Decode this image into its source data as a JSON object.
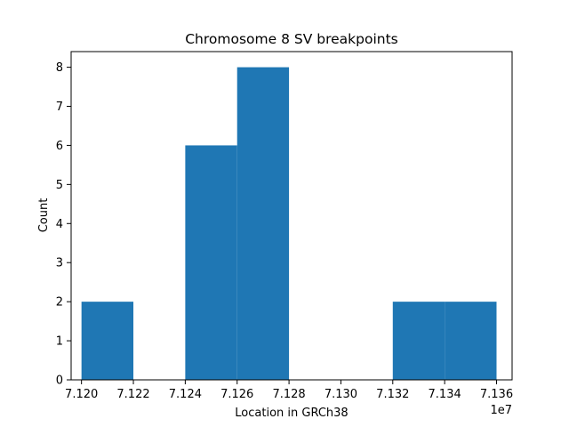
{
  "chart_data": {
    "type": "bar",
    "subtype": "histogram",
    "title": "Chromosome 8 SV breakpoints",
    "xlabel": "Location in GRCh38",
    "ylabel": "Count",
    "x_offset_label": "1e7",
    "xlim": [
      7.1196,
      7.1366
    ],
    "ylim": [
      0,
      8.4
    ],
    "x_ticks": [
      7.12,
      7.122,
      7.124,
      7.126,
      7.128,
      7.13,
      7.132,
      7.134,
      7.136
    ],
    "x_tick_labels": [
      "7.120",
      "7.122",
      "7.124",
      "7.126",
      "7.128",
      "7.130",
      "7.132",
      "7.134",
      "7.136"
    ],
    "y_ticks": [
      0,
      1,
      2,
      3,
      4,
      5,
      6,
      7,
      8
    ],
    "y_tick_labels": [
      "0",
      "1",
      "2",
      "3",
      "4",
      "5",
      "6",
      "7",
      "8"
    ],
    "bins": [
      {
        "start": 7.12,
        "end": 7.122,
        "count": 2
      },
      {
        "start": 7.122,
        "end": 7.124,
        "count": 0
      },
      {
        "start": 7.124,
        "end": 7.126,
        "count": 6
      },
      {
        "start": 7.126,
        "end": 7.128,
        "count": 8
      },
      {
        "start": 7.128,
        "end": 7.13,
        "count": 0
      },
      {
        "start": 7.13,
        "end": 7.132,
        "count": 0
      },
      {
        "start": 7.132,
        "end": 7.134,
        "count": 2
      },
      {
        "start": 7.134,
        "end": 7.136,
        "count": 2
      }
    ],
    "bar_color": "#1f77b4",
    "grid": false,
    "legend": "none"
  }
}
